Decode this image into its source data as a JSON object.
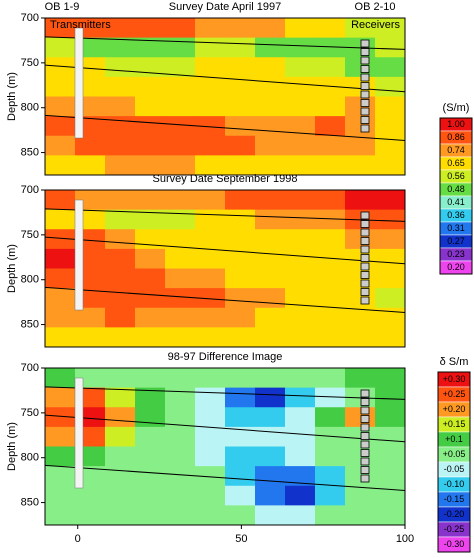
{
  "chart_data": [
    {
      "type": "heatmap",
      "title": "Survey Date April 1997",
      "ylabel": "Depth (m)",
      "annotations": [
        "OB 1-9",
        "OB 2-10",
        "Transmitters",
        "Receivers"
      ],
      "xlim": [
        -10,
        100
      ],
      "ylim": [
        700,
        875
      ],
      "yticks": [
        700,
        750,
        800,
        850
      ],
      "values": [
        [
          0.86,
          0.86,
          0.86,
          0.86,
          0.86,
          0.74,
          0.74,
          0.74,
          0.65,
          0.65,
          0.56,
          0.56
        ],
        [
          0.56,
          0.48,
          0.48,
          0.48,
          0.48,
          0.56,
          0.56,
          0.48,
          0.48,
          0.48,
          0.48,
          0.56
        ],
        [
          0.65,
          0.65,
          0.56,
          0.56,
          0.56,
          0.65,
          0.65,
          0.65,
          0.56,
          0.56,
          0.48,
          0.48
        ],
        [
          0.65,
          0.65,
          0.65,
          0.65,
          0.65,
          0.65,
          0.65,
          0.65,
          0.65,
          0.65,
          0.65,
          0.56
        ],
        [
          0.74,
          0.74,
          0.74,
          0.65,
          0.65,
          0.65,
          0.65,
          0.65,
          0.65,
          0.65,
          0.74,
          0.65
        ],
        [
          0.86,
          0.86,
          0.86,
          0.86,
          0.86,
          0.86,
          0.74,
          0.74,
          0.74,
          0.86,
          0.74,
          0.65
        ],
        [
          0.74,
          0.86,
          0.86,
          0.86,
          0.86,
          0.86,
          0.86,
          0.74,
          0.74,
          0.74,
          0.74,
          0.65
        ],
        [
          0.65,
          0.65,
          0.74,
          0.74,
          0.74,
          0.65,
          0.65,
          0.65,
          0.65,
          0.65,
          0.65,
          0.65
        ]
      ]
    },
    {
      "type": "heatmap",
      "title": "Survey Date September 1998",
      "ylabel": "Depth (m)",
      "xlim": [
        -10,
        100
      ],
      "ylim": [
        700,
        875
      ],
      "yticks": [
        700,
        750,
        800,
        850
      ],
      "values": [
        [
          0.86,
          0.74,
          0.74,
          0.74,
          0.74,
          0.74,
          0.86,
          0.86,
          0.86,
          0.86,
          1.0,
          1.0
        ],
        [
          0.65,
          0.65,
          0.56,
          0.56,
          0.56,
          0.65,
          0.65,
          0.74,
          0.74,
          0.74,
          0.86,
          0.86
        ],
        [
          0.86,
          0.86,
          0.74,
          0.65,
          0.65,
          0.65,
          0.65,
          0.65,
          0.65,
          0.65,
          0.74,
          0.74
        ],
        [
          1.0,
          0.86,
          0.86,
          0.74,
          0.65,
          0.65,
          0.65,
          0.65,
          0.65,
          0.65,
          0.65,
          0.65
        ],
        [
          0.86,
          0.86,
          0.86,
          0.86,
          0.74,
          0.74,
          0.65,
          0.65,
          0.65,
          0.65,
          0.65,
          0.65
        ],
        [
          0.74,
          0.86,
          0.86,
          0.86,
          0.86,
          0.86,
          0.74,
          0.74,
          0.65,
          0.65,
          0.65,
          0.56
        ],
        [
          0.74,
          0.74,
          0.86,
          0.74,
          0.74,
          0.74,
          0.74,
          0.65,
          0.65,
          0.65,
          0.65,
          0.65
        ],
        [
          0.65,
          0.65,
          0.65,
          0.65,
          0.65,
          0.65,
          0.65,
          0.65,
          0.65,
          0.65,
          0.65,
          0.65
        ]
      ]
    },
    {
      "type": "heatmap",
      "title": "98-97 Difference Image",
      "ylabel": "Depth (m)",
      "xlim": [
        -10,
        100
      ],
      "ylim": [
        700,
        875
      ],
      "yticks": [
        700,
        750,
        800,
        850
      ],
      "xticks": [
        0,
        50,
        100
      ],
      "values": [
        [
          0.1,
          0.05,
          0.05,
          0.05,
          0.05,
          0.05,
          0.05,
          0.05,
          0.05,
          0.05,
          0.1,
          0.1
        ],
        [
          0.2,
          0.25,
          0.15,
          0.1,
          0.05,
          -0.05,
          -0.15,
          -0.2,
          -0.1,
          -0.05,
          0.05,
          0.1
        ],
        [
          0.25,
          0.3,
          0.2,
          0.1,
          0.05,
          -0.05,
          -0.1,
          -0.1,
          -0.05,
          0.1,
          0.2,
          0.1
        ],
        [
          0.2,
          0.25,
          0.15,
          0.05,
          0.05,
          -0.05,
          -0.05,
          -0.05,
          -0.05,
          0.05,
          0.05,
          0.05
        ],
        [
          0.1,
          0.1,
          0.05,
          0.05,
          0.05,
          -0.05,
          -0.1,
          -0.1,
          -0.05,
          0.05,
          0.05,
          0.05
        ],
        [
          0.05,
          0.05,
          0.05,
          0.05,
          0.05,
          0.05,
          -0.1,
          -0.15,
          -0.15,
          -0.1,
          0.05,
          0.05
        ],
        [
          0.05,
          0.05,
          0.05,
          0.05,
          0.05,
          0.05,
          -0.05,
          -0.15,
          -0.2,
          -0.1,
          0.05,
          0.05
        ],
        [
          0.05,
          0.05,
          0.05,
          0.05,
          0.05,
          0.05,
          0.05,
          -0.05,
          -0.05,
          0.05,
          0.05,
          0.05
        ]
      ]
    }
  ],
  "colorbars": [
    {
      "title": "(S/m)",
      "levels": [
        {
          "value": 1,
          "label": "1.00",
          "color": "#ee1111"
        },
        {
          "value": 0.86,
          "color": "#ff5511"
        },
        {
          "value": 0.74,
          "color": "#ff9922"
        },
        {
          "value": 0.65,
          "color": "#ffdd00"
        },
        {
          "value": 0.56,
          "color": "#ccee22"
        },
        {
          "value": 0.48,
          "color": "#66dd44"
        },
        {
          "value": 0.41,
          "color": "#88eecc"
        },
        {
          "value": 0.36,
          "color": "#33ccee"
        },
        {
          "value": 0.31,
          "color": "#2277ee"
        },
        {
          "value": 0.27,
          "color": "#1133cc"
        },
        {
          "value": 0.23,
          "color": "#8833cc"
        },
        {
          "value": 0.2,
          "label": "0.20",
          "color": "#ee44ee"
        }
      ]
    },
    {
      "title": "δ S/m",
      "levels": [
        {
          "value": 0.3,
          "label": "+0.30",
          "color": "#ee1111"
        },
        {
          "value": 0.25,
          "label": "+0.25",
          "color": "#ff5511"
        },
        {
          "value": 0.2,
          "label": "+0.20",
          "color": "#ff9922"
        },
        {
          "value": 0.15,
          "label": "+0.15",
          "color": "#ccee22"
        },
        {
          "value": 0.1,
          "label": "+0.1",
          "color": "#44cc44"
        },
        {
          "value": 0.05,
          "label": "+0.05",
          "color": "#88ee88"
        },
        {
          "value": -0.05,
          "color": "#bbf4f4"
        },
        {
          "value": -0.1,
          "label": "-0.10",
          "color": "#33ccee"
        },
        {
          "value": -0.15,
          "color": "#2277ee"
        },
        {
          "value": -0.2,
          "label": "-0.20",
          "color": "#1133cc"
        },
        {
          "value": -0.25,
          "color": "#8833cc"
        },
        {
          "value": -0.3,
          "label": "-0.30",
          "color": "#ee44ee"
        }
      ]
    }
  ]
}
